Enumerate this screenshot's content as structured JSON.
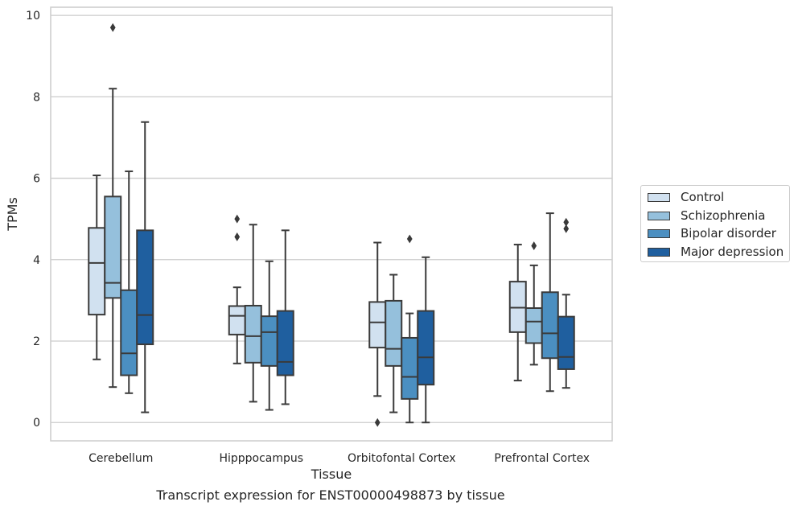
{
  "caption": "Transcript expression for ENST00000498873 by tissue",
  "colors": {
    "Control": "#d1e1f0",
    "Schizophrenia": "#95c0dc",
    "Bipolar disorder": "#4b8fc1",
    "Major depression": "#1f5f9f",
    "box_edge": "#3a3a3a",
    "grid": "#cccccc"
  },
  "chart_data": {
    "type": "boxplot",
    "title": "",
    "xlabel": "Tissue",
    "ylabel": "TPMs",
    "ylim": [
      -0.45,
      10.2
    ],
    "yticks": [
      "0",
      "2",
      "4",
      "6",
      "8",
      "10"
    ],
    "grid": "horizontal",
    "legend_position": "right",
    "categories": [
      "Cerebellum",
      "Hipppocampus",
      "Orbitofontal Cortex",
      "Prefrontal Cortex"
    ],
    "series": [
      {
        "name": "Control",
        "boxes": [
          {
            "whislo": 1.55,
            "q1": 2.65,
            "med": 3.92,
            "q3": 4.78,
            "whishi": 6.07,
            "fliers": []
          },
          {
            "whislo": 1.45,
            "q1": 2.16,
            "med": 2.62,
            "q3": 2.86,
            "whishi": 3.32,
            "fliers": [
              4.56,
              5.0
            ]
          },
          {
            "whislo": 0.65,
            "q1": 1.84,
            "med": 2.46,
            "q3": 2.96,
            "whishi": 4.42,
            "fliers": [
              0.0
            ]
          },
          {
            "whislo": 1.03,
            "q1": 2.22,
            "med": 2.82,
            "q3": 3.46,
            "whishi": 4.37,
            "fliers": []
          }
        ]
      },
      {
        "name": "Schizophrenia",
        "boxes": [
          {
            "whislo": 0.87,
            "q1": 3.06,
            "med": 3.43,
            "q3": 5.55,
            "whishi": 8.2,
            "fliers": [
              9.7
            ]
          },
          {
            "whislo": 0.51,
            "q1": 1.47,
            "med": 2.12,
            "q3": 2.87,
            "whishi": 4.86,
            "fliers": []
          },
          {
            "whislo": 0.25,
            "q1": 1.39,
            "med": 1.81,
            "q3": 2.99,
            "whishi": 3.63,
            "fliers": []
          },
          {
            "whislo": 1.42,
            "q1": 1.95,
            "med": 2.48,
            "q3": 2.81,
            "whishi": 3.86,
            "fliers": [
              4.34
            ]
          }
        ]
      },
      {
        "name": "Bipolar disorder",
        "boxes": [
          {
            "whislo": 0.72,
            "q1": 1.16,
            "med": 1.7,
            "q3": 3.25,
            "whishi": 6.17,
            "fliers": []
          },
          {
            "whislo": 0.31,
            "q1": 1.39,
            "med": 2.22,
            "q3": 2.61,
            "whishi": 3.96,
            "fliers": []
          },
          {
            "whislo": 0.0,
            "q1": 0.58,
            "med": 1.12,
            "q3": 2.08,
            "whishi": 2.68,
            "fliers": [
              4.51
            ]
          },
          {
            "whislo": 0.77,
            "q1": 1.58,
            "med": 2.19,
            "q3": 3.2,
            "whishi": 5.14,
            "fliers": []
          }
        ]
      },
      {
        "name": "Major depression",
        "boxes": [
          {
            "whislo": 0.25,
            "q1": 1.92,
            "med": 2.64,
            "q3": 4.72,
            "whishi": 7.38,
            "fliers": []
          },
          {
            "whislo": 0.45,
            "q1": 1.16,
            "med": 1.49,
            "q3": 2.74,
            "whishi": 4.72,
            "fliers": []
          },
          {
            "whislo": 0.0,
            "q1": 0.93,
            "med": 1.6,
            "q3": 2.74,
            "whishi": 4.06,
            "fliers": []
          },
          {
            "whislo": 0.85,
            "q1": 1.31,
            "med": 1.61,
            "q3": 2.6,
            "whishi": 3.14,
            "fliers": [
              4.76,
              4.92
            ]
          }
        ]
      }
    ]
  }
}
